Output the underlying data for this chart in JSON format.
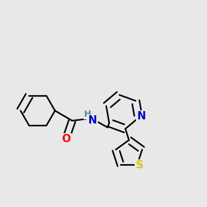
{
  "background_color": "#e8e8e8",
  "bond_color": "#000000",
  "bond_width": 1.6,
  "atom_colors": {
    "N": "#0000cc",
    "O": "#ff0000",
    "S": "#cccc00",
    "NH": "#4a9090"
  },
  "font_size": 10
}
